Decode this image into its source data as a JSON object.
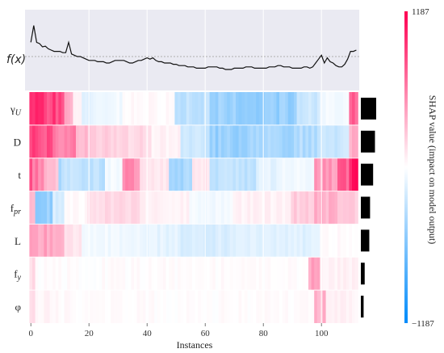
{
  "chart_data": {
    "type": "heatmap",
    "title": "",
    "xlabel": "Instances",
    "colorbar_label": "SHAP value (impact on model output)",
    "colorbar_max_label": "1187",
    "colorbar_min_label": "−1187",
    "colorbar_range": [
      -1187,
      1187
    ],
    "colors": {
      "positive": "#ff0052",
      "negative": "#008bfb",
      "neutral": "#ffffff",
      "panel_bg": "#eaeaf2"
    },
    "fx_label": "f(x)",
    "x_ticks": [
      "0",
      "20",
      "40",
      "60",
      "80",
      "100"
    ],
    "x_range": [
      -2,
      113
    ],
    "features": [
      {
        "label": "γ",
        "sub": "U",
        "importance": 1.0,
        "segments": [
          [
            0,
            12,
            0.75
          ],
          [
            12,
            15,
            0.35
          ],
          [
            15,
            18,
            0.05
          ],
          [
            18,
            22,
            -0.1
          ],
          [
            22,
            32,
            -0.05
          ],
          [
            32,
            44,
            0.02
          ],
          [
            44,
            50,
            0.02
          ],
          [
            50,
            62,
            -0.25
          ],
          [
            62,
            75,
            -0.4
          ],
          [
            75,
            92,
            -0.4
          ],
          [
            92,
            100,
            -0.2
          ],
          [
            100,
            110,
            -0.05
          ],
          [
            110,
            112,
            0.6
          ]
        ]
      },
      {
        "label": "D",
        "sub": "",
        "importance": 0.92,
        "segments": [
          [
            0,
            8,
            0.7
          ],
          [
            8,
            16,
            0.5
          ],
          [
            16,
            22,
            0.25
          ],
          [
            22,
            28,
            0.2
          ],
          [
            28,
            42,
            0.15
          ],
          [
            42,
            52,
            0.05
          ],
          [
            52,
            62,
            -0.2
          ],
          [
            62,
            78,
            -0.4
          ],
          [
            78,
            92,
            -0.35
          ],
          [
            92,
            100,
            -0.3
          ],
          [
            100,
            110,
            -0.2
          ],
          [
            110,
            112,
            0.3
          ]
        ]
      },
      {
        "label": "t",
        "sub": "",
        "importance": 0.8,
        "segments": [
          [
            0,
            1,
            0.7
          ],
          [
            1,
            5,
            0.5
          ],
          [
            5,
            10,
            0.25
          ],
          [
            10,
            12,
            -0.3
          ],
          [
            12,
            26,
            -0.25
          ],
          [
            26,
            32,
            -0.05
          ],
          [
            32,
            38,
            0.45
          ],
          [
            38,
            48,
            0.1
          ],
          [
            48,
            56,
            -0.35
          ],
          [
            56,
            62,
            0.1
          ],
          [
            62,
            78,
            -0.25
          ],
          [
            78,
            86,
            -0.1
          ],
          [
            86,
            98,
            -0.05
          ],
          [
            98,
            106,
            0.4
          ],
          [
            106,
            110,
            0.6
          ],
          [
            110,
            112,
            0.85
          ]
        ]
      },
      {
        "label": "f",
        "sub": "pr",
        "importance": 0.6,
        "segments": [
          [
            0,
            2,
            0.3
          ],
          [
            2,
            8,
            -0.4
          ],
          [
            8,
            12,
            -0.15
          ],
          [
            12,
            20,
            0.02
          ],
          [
            20,
            38,
            0.15
          ],
          [
            38,
            55,
            0.05
          ],
          [
            55,
            70,
            -0.05
          ],
          [
            70,
            90,
            0.05
          ],
          [
            90,
            98,
            0.2
          ],
          [
            98,
            106,
            0.3
          ],
          [
            106,
            112,
            0.2
          ]
        ]
      },
      {
        "label": "L",
        "sub": "",
        "importance": 0.55,
        "segments": [
          [
            0,
            3,
            0.45
          ],
          [
            3,
            12,
            0.35
          ],
          [
            12,
            18,
            0.1
          ],
          [
            18,
            38,
            -0.05
          ],
          [
            38,
            52,
            -0.1
          ],
          [
            52,
            70,
            -0.15
          ],
          [
            70,
            100,
            -0.12
          ],
          [
            100,
            112,
            0.02
          ]
        ]
      },
      {
        "label": "f",
        "sub": "y",
        "importance": 0.25,
        "segments": [
          [
            0,
            2,
            0.15
          ],
          [
            2,
            96,
            0.01
          ],
          [
            96,
            100,
            0.35
          ],
          [
            100,
            112,
            0.05
          ]
        ]
      },
      {
        "label": "φ",
        "sub": "",
        "importance": 0.18,
        "segments": [
          [
            0,
            2,
            0.12
          ],
          [
            2,
            8,
            0.04
          ],
          [
            8,
            30,
            0.02
          ],
          [
            30,
            98,
            0.01
          ],
          [
            98,
            102,
            0.3
          ],
          [
            102,
            112,
            0.05
          ]
        ]
      }
    ],
    "fx_values": [
      0.62,
      0.88,
      0.62,
      0.6,
      0.55,
      0.56,
      0.52,
      0.5,
      0.48,
      0.48,
      0.48,
      0.46,
      0.46,
      0.62,
      0.44,
      0.42,
      0.4,
      0.4,
      0.38,
      0.36,
      0.34,
      0.34,
      0.34,
      0.32,
      0.32,
      0.32,
      0.3,
      0.3,
      0.32,
      0.34,
      0.34,
      0.34,
      0.34,
      0.32,
      0.3,
      0.3,
      0.32,
      0.34,
      0.34,
      0.36,
      0.38,
      0.36,
      0.38,
      0.34,
      0.32,
      0.32,
      0.3,
      0.3,
      0.3,
      0.28,
      0.28,
      0.26,
      0.26,
      0.26,
      0.24,
      0.24,
      0.24,
      0.22,
      0.22,
      0.22,
      0.22,
      0.24,
      0.24,
      0.24,
      0.24,
      0.22,
      0.22,
      0.2,
      0.2,
      0.2,
      0.22,
      0.22,
      0.22,
      0.22,
      0.24,
      0.24,
      0.24,
      0.22,
      0.22,
      0.22,
      0.22,
      0.22,
      0.24,
      0.24,
      0.24,
      0.26,
      0.26,
      0.24,
      0.24,
      0.24,
      0.22,
      0.22,
      0.22,
      0.22,
      0.24,
      0.24,
      0.22,
      0.24,
      0.3,
      0.36,
      0.42,
      0.3,
      0.38,
      0.32,
      0.3,
      0.26,
      0.24,
      0.24,
      0.28,
      0.36,
      0.48,
      0.48,
      0.5
    ]
  }
}
